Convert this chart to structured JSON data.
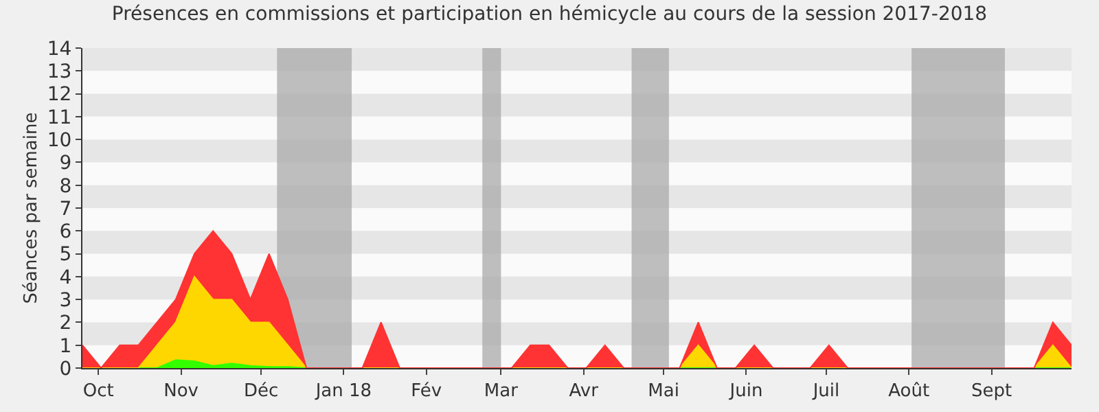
{
  "chart_data": {
    "type": "area",
    "stacked": true,
    "title": "Présences en commissions et participation en hémicycle au cours de la session 2017-2018",
    "ylabel": "Séances par semaine",
    "x": [
      "2017-09-25",
      "2017-10-02",
      "2017-10-09",
      "2017-10-16",
      "2017-10-23",
      "2017-10-30",
      "2017-11-06",
      "2017-11-13",
      "2017-11-20",
      "2017-11-27",
      "2017-12-04",
      "2017-12-11",
      "2017-12-18",
      "2017-12-25",
      "2018-01-01",
      "2018-01-08",
      "2018-01-15",
      "2018-01-22",
      "2018-01-29",
      "2018-02-05",
      "2018-02-12",
      "2018-02-19",
      "2018-02-26",
      "2018-03-05",
      "2018-03-12",
      "2018-03-19",
      "2018-03-26",
      "2018-04-02",
      "2018-04-09",
      "2018-04-16",
      "2018-04-23",
      "2018-04-30",
      "2018-05-07",
      "2018-05-14",
      "2018-05-21",
      "2018-05-28",
      "2018-06-04",
      "2018-06-11",
      "2018-06-18",
      "2018-06-25",
      "2018-07-02",
      "2018-07-09",
      "2018-07-16",
      "2018-07-23",
      "2018-07-30",
      "2018-08-06",
      "2018-08-13",
      "2018-08-20",
      "2018-08-27",
      "2018-09-03",
      "2018-09-10",
      "2018-09-17",
      "2018-09-24",
      "2018-10-01"
    ],
    "series": [
      {
        "color": "#33ff00",
        "values": [
          0,
          0,
          0,
          0,
          0,
          0.35,
          0.3,
          0.1,
          0.2,
          0.1,
          0.05,
          0.05,
          0,
          0,
          0,
          0,
          0,
          0,
          0,
          0,
          0,
          0,
          0,
          0,
          0,
          0,
          0,
          0,
          0,
          0,
          0,
          0,
          0,
          0,
          0,
          0,
          0,
          0,
          0,
          0,
          0,
          0,
          0,
          0,
          0,
          0,
          0,
          0,
          0,
          0,
          0,
          0,
          0,
          0
        ]
      },
      {
        "color": "#ffd700",
        "values": [
          0,
          0,
          0,
          0,
          1,
          1.65,
          3.7,
          2.9,
          2.8,
          1.9,
          1.95,
          0.95,
          0,
          0,
          0,
          0,
          0,
          0,
          0,
          0,
          0,
          0,
          0,
          0,
          0,
          0,
          0,
          0,
          0,
          0,
          0,
          0,
          0,
          1,
          0,
          0,
          0,
          0,
          0,
          0,
          0,
          0,
          0,
          0,
          0,
          0,
          0,
          0,
          0,
          0,
          0,
          0,
          1,
          0
        ]
      },
      {
        "color": "#ff3333",
        "values": [
          1,
          0,
          1,
          1,
          1,
          1,
          1,
          3,
          2,
          1,
          3,
          2,
          0,
          0,
          0,
          0,
          2,
          0,
          0,
          0,
          0,
          0,
          0,
          0,
          1,
          1,
          0,
          0,
          1,
          0,
          0,
          0,
          0,
          1,
          0,
          0,
          1,
          0,
          0,
          0,
          1,
          0,
          0,
          0,
          0,
          0,
          0,
          0,
          0,
          0,
          0,
          0,
          1,
          1
        ]
      }
    ],
    "xlim": [
      "2017-09-25",
      "2018-10-01"
    ],
    "ylim": [
      0,
      14
    ],
    "yticks": [
      0,
      1,
      2,
      3,
      4,
      5,
      6,
      7,
      8,
      9,
      10,
      11,
      12,
      13,
      14
    ],
    "xticks": [
      {
        "value": "2017-10-01",
        "label": "Oct"
      },
      {
        "value": "2017-11-01",
        "label": "Nov"
      },
      {
        "value": "2017-12-01",
        "label": "Déc"
      },
      {
        "value": "2018-01-01",
        "label": "Jan 18"
      },
      {
        "value": "2018-02-01",
        "label": "Fév"
      },
      {
        "value": "2018-03-01",
        "label": "Mar"
      },
      {
        "value": "2018-04-01",
        "label": "Avr"
      },
      {
        "value": "2018-05-01",
        "label": "Mai"
      },
      {
        "value": "2018-06-01",
        "label": "Juin"
      },
      {
        "value": "2018-07-01",
        "label": "Juil"
      },
      {
        "value": "2018-08-01",
        "label": "Août"
      },
      {
        "value": "2018-09-01",
        "label": "Sept"
      }
    ],
    "bands": [
      {
        "axis": "x",
        "from": "2017-12-07",
        "to": "2018-01-04",
        "color": "#aaaaaa"
      },
      {
        "axis": "x",
        "from": "2018-02-22",
        "to": "2018-03-01",
        "color": "#aaaaaa"
      },
      {
        "axis": "x",
        "from": "2018-04-19",
        "to": "2018-05-03",
        "color": "#aaaaaa"
      },
      {
        "axis": "x",
        "from": "2018-08-02",
        "to": "2018-09-06",
        "color": "#aaaaaa"
      }
    ],
    "tick_labels": "xy"
  }
}
